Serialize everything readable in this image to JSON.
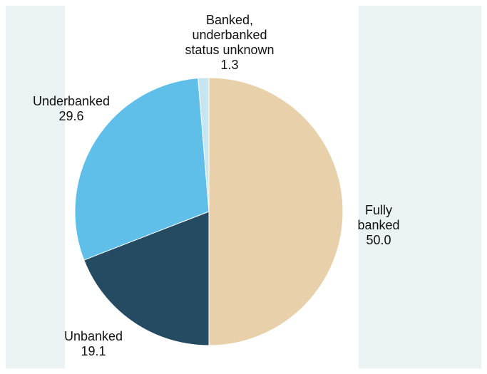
{
  "chart_data": {
    "type": "pie",
    "title": "",
    "start_angle_deg": 0,
    "direction": "counterclockwise",
    "slices": [
      {
        "label": [
          "Banked,",
          "underbanked",
          "status unknown"
        ],
        "value": 1.3,
        "value_label": "1.3",
        "color": "#c6e5ef"
      },
      {
        "label": [
          "Underbanked"
        ],
        "value": 29.6,
        "value_label": "29.6",
        "color": "#5fbfe9"
      },
      {
        "label": [
          "Unbanked"
        ],
        "value": 19.1,
        "value_label": "19.1",
        "color": "#244b62"
      },
      {
        "label": [
          "Fully",
          "banked"
        ],
        "value": 50.0,
        "value_label": "50.0",
        "color": "#e8d1aa"
      }
    ]
  }
}
